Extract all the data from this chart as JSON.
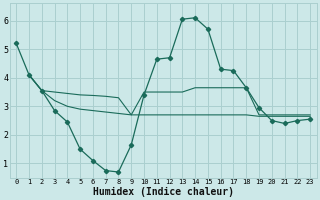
{
  "bg_color": "#cce8e8",
  "line_color": "#1a6b5a",
  "grid_color": "#aacfcf",
  "xlabel": "Humidex (Indice chaleur)",
  "xlim_min": -0.5,
  "xlim_max": 23.5,
  "ylim_min": 0.5,
  "ylim_max": 6.6,
  "yticks": [
    1,
    2,
    3,
    4,
    5,
    6
  ],
  "xticks": [
    0,
    1,
    2,
    3,
    4,
    5,
    6,
    7,
    8,
    9,
    10,
    11,
    12,
    13,
    14,
    15,
    16,
    17,
    18,
    19,
    20,
    21,
    22,
    23
  ],
  "curve1_x": [
    0,
    1,
    2,
    3,
    4,
    5,
    6,
    7,
    8,
    9,
    10,
    11,
    12,
    13,
    14,
    15,
    16,
    17,
    18,
    19,
    20,
    21,
    22,
    23
  ],
  "curve1_y": [
    5.2,
    4.1,
    3.55,
    2.85,
    2.45,
    1.5,
    1.1,
    0.75,
    0.7,
    1.65,
    3.4,
    4.65,
    4.7,
    6.05,
    6.1,
    5.7,
    4.3,
    4.25,
    3.65,
    2.95,
    2.5,
    2.4,
    2.5,
    2.55
  ],
  "line2_x": [
    1,
    2,
    3,
    4,
    5,
    6,
    7,
    8,
    9,
    10,
    11,
    12,
    13,
    14,
    15,
    16,
    17,
    18,
    19,
    20,
    21,
    22,
    23
  ],
  "line2_y": [
    4.1,
    3.55,
    3.5,
    3.45,
    3.4,
    3.38,
    3.35,
    3.3,
    2.7,
    3.5,
    3.5,
    3.5,
    3.5,
    3.65,
    3.65,
    3.65,
    3.65,
    3.65,
    2.7,
    2.7,
    2.7,
    2.7,
    2.7
  ],
  "line3_x": [
    1,
    2,
    3,
    4,
    5,
    6,
    7,
    8,
    9,
    10,
    11,
    12,
    13,
    14,
    15,
    16,
    17,
    18,
    19,
    20,
    21,
    22,
    23
  ],
  "line3_y": [
    4.1,
    3.55,
    3.2,
    3.0,
    2.9,
    2.85,
    2.8,
    2.75,
    2.7,
    2.7,
    2.7,
    2.7,
    2.7,
    2.7,
    2.7,
    2.7,
    2.7,
    2.7,
    2.65,
    2.65,
    2.65,
    2.65,
    2.65
  ]
}
